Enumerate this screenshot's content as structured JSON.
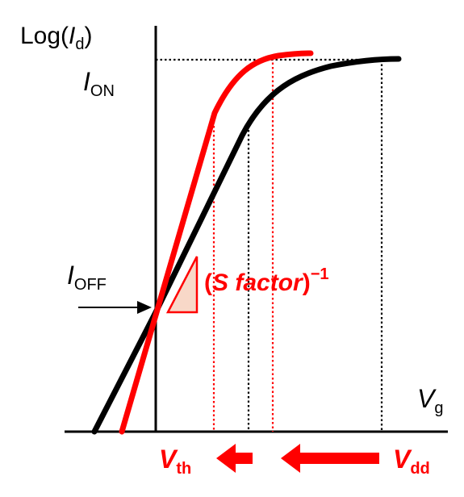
{
  "y_axis_label": {
    "prefix": "Log(",
    "var": "I",
    "sub": "d",
    "suffix": ")"
  },
  "x_axis_label": {
    "var": "V",
    "sub": "g"
  },
  "ion_label": {
    "var": "I",
    "sub": "ON"
  },
  "ioff_label": {
    "var": "I",
    "sub": "OFF"
  },
  "s_factor_label": {
    "open": "(",
    "text": "S factor",
    "close": ")",
    "exp": "−1"
  },
  "vth_label": {
    "var": "V",
    "sub": "th"
  },
  "vdd_label": {
    "var": "V",
    "sub": "dd"
  },
  "colors": {
    "red_curve": "#ff0000",
    "black_curve": "#000000",
    "triangle_fill": "#f8d8c8",
    "label_red": "#ff0000"
  },
  "icons": {
    "ioff_arrow": "right-arrow-icon",
    "shift_arrows": "left-arrow-icon"
  }
}
